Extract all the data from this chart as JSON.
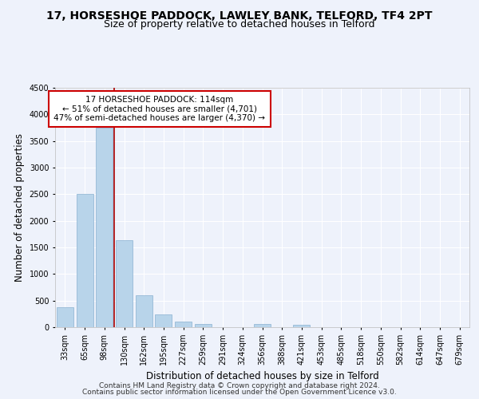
{
  "title": "17, HORSESHOE PADDOCK, LAWLEY BANK, TELFORD, TF4 2PT",
  "subtitle": "Size of property relative to detached houses in Telford",
  "xlabel": "Distribution of detached houses by size in Telford",
  "ylabel": "Number of detached properties",
  "bar_labels": [
    "33sqm",
    "65sqm",
    "98sqm",
    "130sqm",
    "162sqm",
    "195sqm",
    "227sqm",
    "259sqm",
    "291sqm",
    "324sqm",
    "356sqm",
    "388sqm",
    "421sqm",
    "453sqm",
    "485sqm",
    "518sqm",
    "550sqm",
    "582sqm",
    "614sqm",
    "647sqm",
    "679sqm"
  ],
  "bar_values": [
    380,
    2500,
    3750,
    1640,
    600,
    240,
    100,
    55,
    0,
    0,
    55,
    0,
    45,
    0,
    0,
    0,
    0,
    0,
    0,
    0,
    0
  ],
  "bar_color": "#b8d4ea",
  "annotation_title": "17 HORSESHOE PADDOCK: 114sqm",
  "annotation_line1": "← 51% of detached houses are smaller (4,701)",
  "annotation_line2": "47% of semi-detached houses are larger (4,370) →",
  "annotation_box_facecolor": "#ffffff",
  "annotation_box_edgecolor": "#cc0000",
  "vline_color": "#aa0000",
  "vline_x": 2.5,
  "ylim": [
    0,
    4500
  ],
  "yticks": [
    0,
    500,
    1000,
    1500,
    2000,
    2500,
    3000,
    3500,
    4000,
    4500
  ],
  "footer1": "Contains HM Land Registry data © Crown copyright and database right 2024.",
  "footer2": "Contains public sector information licensed under the Open Government Licence v3.0.",
  "background_color": "#eef2fb",
  "grid_color": "#ffffff",
  "title_fontsize": 10,
  "subtitle_fontsize": 9,
  "axis_label_fontsize": 8.5,
  "tick_fontsize": 7,
  "annotation_fontsize": 7.5,
  "footer_fontsize": 6.5
}
